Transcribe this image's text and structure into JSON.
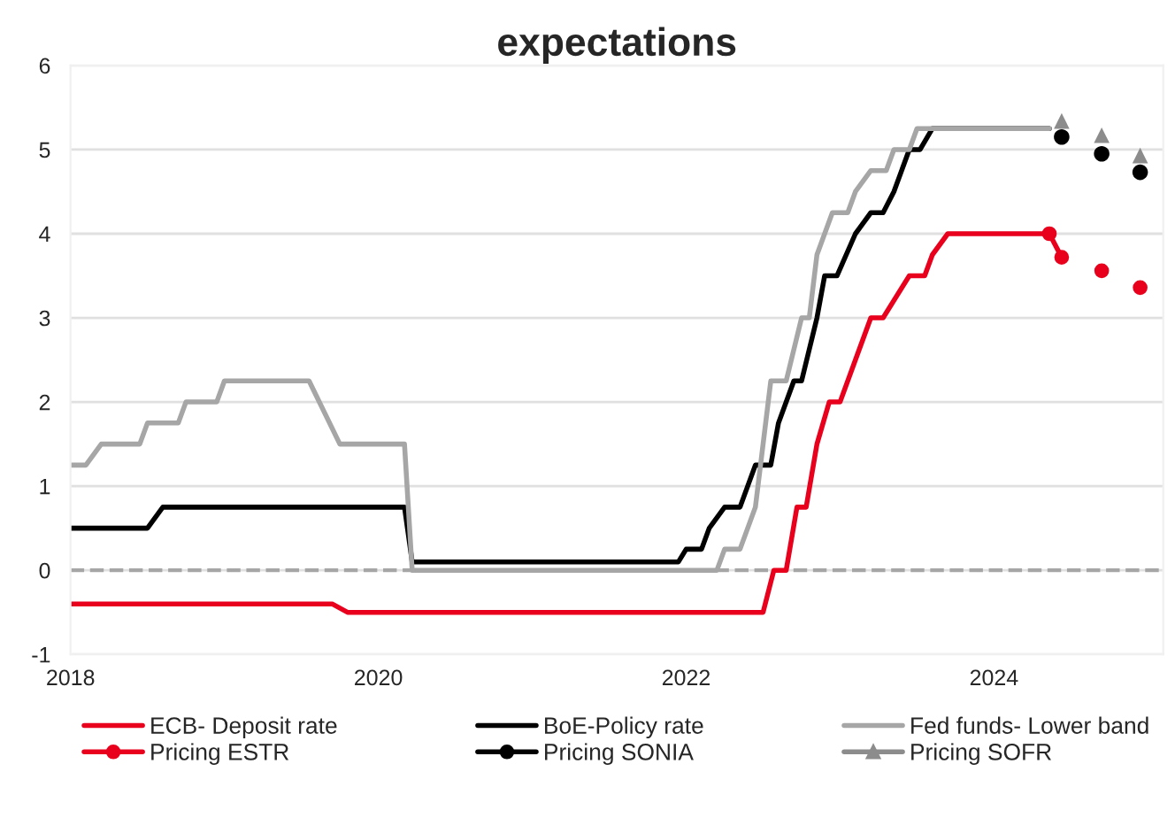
{
  "chart_data": {
    "type": "line",
    "title": "expectations",
    "xlim": [
      2018,
      2025.1
    ],
    "xticks": [
      2018,
      2020,
      2022,
      2024
    ],
    "ylim": [
      -1,
      6
    ],
    "yticks": [
      -1,
      0,
      1,
      2,
      3,
      4,
      5,
      6
    ],
    "grid": "y",
    "legend": "bottom",
    "line_style": "solid",
    "ref_lines": [
      {
        "axis": "y",
        "value": 0,
        "color": "#a6a6a6",
        "line_style": "dashed"
      }
    ],
    "series": [
      {
        "name": "ECB- Deposit rate",
        "color": "#e8001c",
        "marker": "none",
        "x": [
          2018.0,
          2019.7,
          2019.8,
          2022.5,
          2022.57,
          2022.65,
          2022.72,
          2022.78,
          2022.85,
          2022.93,
          2023.0,
          2023.1,
          2023.2,
          2023.28,
          2023.45,
          2023.55,
          2023.6,
          2023.7,
          2024.36
        ],
        "values": [
          -0.4,
          -0.4,
          -0.5,
          -0.5,
          0,
          0,
          0.75,
          0.75,
          1.5,
          2.0,
          2.0,
          2.5,
          3.0,
          3.0,
          3.5,
          3.5,
          3.75,
          4.0,
          4.0
        ]
      },
      {
        "name": "BoE-Policy rate",
        "color": "#000000",
        "marker": "none",
        "x": [
          2018.0,
          2018.5,
          2018.6,
          2020.17,
          2020.22,
          2021.95,
          2022.0,
          2022.1,
          2022.15,
          2022.25,
          2022.35,
          2022.4,
          2022.45,
          2022.55,
          2022.6,
          2022.7,
          2022.75,
          2022.85,
          2022.9,
          2022.98,
          2023.1,
          2023.2,
          2023.28,
          2023.35,
          2023.45,
          2023.52,
          2023.6,
          2024.36
        ],
        "values": [
          0.5,
          0.5,
          0.75,
          0.75,
          0.1,
          0.1,
          0.25,
          0.25,
          0.5,
          0.75,
          0.75,
          1.0,
          1.25,
          1.25,
          1.75,
          2.25,
          2.25,
          3.0,
          3.5,
          3.5,
          4.0,
          4.25,
          4.25,
          4.5,
          5.0,
          5.0,
          5.25,
          5.25
        ]
      },
      {
        "name": "Fed funds- Lower band",
        "color": "#a6a6a6",
        "marker": "none",
        "x": [
          2018.0,
          2018.1,
          2018.2,
          2018.45,
          2018.5,
          2018.7,
          2018.75,
          2018.95,
          2019.0,
          2019.55,
          2019.75,
          2020.17,
          2020.22,
          2022.2,
          2022.25,
          2022.35,
          2022.45,
          2022.5,
          2022.55,
          2022.65,
          2022.75,
          2022.8,
          2022.85,
          2022.95,
          2023.05,
          2023.1,
          2023.2,
          2023.3,
          2023.35,
          2023.45,
          2023.5,
          2024.36
        ],
        "values": [
          1.25,
          1.25,
          1.5,
          1.5,
          1.75,
          1.75,
          2.0,
          2.0,
          2.25,
          2.25,
          1.5,
          1.5,
          0,
          0,
          0.25,
          0.25,
          0.75,
          1.5,
          2.25,
          2.25,
          3.0,
          3.0,
          3.75,
          4.25,
          4.25,
          4.5,
          4.75,
          4.75,
          5.0,
          5.0,
          5.25,
          5.25
        ]
      },
      {
        "name": "Pricing ESTR",
        "color": "#e8001c",
        "marker": "circle",
        "x": [
          2024.36,
          2024.44,
          2024.57,
          2024.7,
          2024.83,
          2024.95
        ],
        "values": [
          4.0,
          3.72,
          null,
          3.56,
          null,
          3.36
        ]
      },
      {
        "name": "Pricing SONIA",
        "color": "#000000",
        "type": "scatter",
        "marker": "circle",
        "x": [
          2024.44,
          2024.7,
          2024.95
        ],
        "values": [
          5.15,
          4.95,
          4.73
        ]
      },
      {
        "name": "Pricing SOFR",
        "color": "#8c8c8c",
        "type": "scatter",
        "marker": "triangle",
        "x": [
          2024.44,
          2024.7,
          2024.95
        ],
        "values": [
          5.34,
          5.17,
          4.93
        ]
      }
    ]
  }
}
